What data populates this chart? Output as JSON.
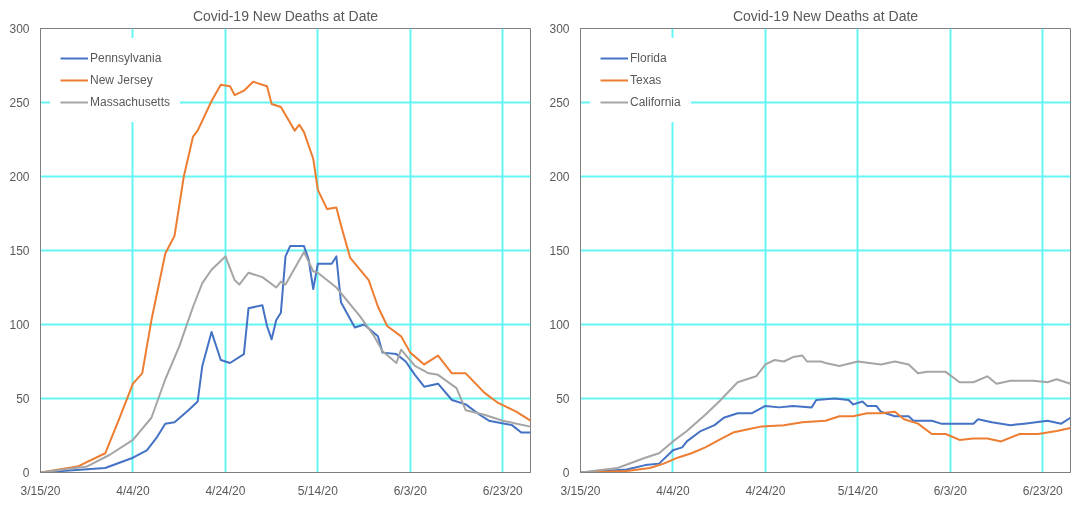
{
  "chart_data": [
    {
      "type": "line",
      "title": "Covid-19 New Deaths at Date",
      "xlim": [
        "2020-03-15",
        "2020-06-29"
      ],
      "xticks": [
        {
          "value": "2020-03-15",
          "label": "3/15/20"
        },
        {
          "value": "2020-04-04",
          "label": "4/4/20"
        },
        {
          "value": "2020-04-24",
          "label": "4/24/20"
        },
        {
          "value": "2020-05-14",
          "label": "5/14/20"
        },
        {
          "value": "2020-06-03",
          "label": "6/3/20"
        },
        {
          "value": "2020-06-23",
          "label": "6/23/20"
        }
      ],
      "ylim": [
        0,
        300
      ],
      "yticks": [
        0,
        50,
        100,
        150,
        200,
        250,
        300
      ],
      "grid": true,
      "legend": "top left",
      "series": [
        {
          "name": "Pennsylvania",
          "color": "#4472c4",
          "x": [
            "2020-03-15",
            "2020-03-29",
            "2020-04-04",
            "2020-04-07",
            "2020-04-09",
            "2020-04-11",
            "2020-04-13",
            "2020-04-16",
            "2020-04-18",
            "2020-04-19",
            "2020-04-21",
            "2020-04-23",
            "2020-04-25",
            "2020-04-28",
            "2020-04-29",
            "2020-05-02",
            "2020-05-03",
            "2020-05-04",
            "2020-05-05",
            "2020-05-06",
            "2020-05-07",
            "2020-05-08",
            "2020-05-11",
            "2020-05-12",
            "2020-05-13",
            "2020-05-14",
            "2020-05-17",
            "2020-05-18",
            "2020-05-19",
            "2020-05-22",
            "2020-05-24",
            "2020-05-27",
            "2020-05-28",
            "2020-05-31",
            "2020-06-02",
            "2020-06-04",
            "2020-06-06",
            "2020-06-09",
            "2020-06-12",
            "2020-06-15",
            "2020-06-18",
            "2020-06-20",
            "2020-06-25",
            "2020-06-27",
            "2020-06-29"
          ],
          "values": [
            0,
            3,
            10,
            15,
            23,
            33,
            34,
            42,
            48,
            72,
            95,
            76,
            74,
            80,
            111,
            113,
            99,
            90,
            103,
            108,
            146,
            153,
            153,
            144,
            124,
            141,
            141,
            146,
            115,
            98,
            100,
            92,
            81,
            80,
            75,
            66,
            58,
            60,
            49,
            46,
            39,
            35,
            32,
            27,
            27
          ]
        },
        {
          "name": "New Jersey",
          "color": "#ed7d31",
          "x": [
            "2020-03-15",
            "2020-03-23",
            "2020-03-29",
            "2020-04-01",
            "2020-04-04",
            "2020-04-06",
            "2020-04-08",
            "2020-04-11",
            "2020-04-13",
            "2020-04-15",
            "2020-04-17",
            "2020-04-18",
            "2020-04-21",
            "2020-04-23",
            "2020-04-25",
            "2020-04-26",
            "2020-04-28",
            "2020-04-30",
            "2020-05-03",
            "2020-05-04",
            "2020-05-06",
            "2020-05-09",
            "2020-05-10",
            "2020-05-11",
            "2020-05-13",
            "2020-05-14",
            "2020-05-16",
            "2020-05-18",
            "2020-05-19",
            "2020-05-21",
            "2020-05-25",
            "2020-05-27",
            "2020-05-29",
            "2020-06-01",
            "2020-06-03",
            "2020-06-06",
            "2020-06-09",
            "2020-06-12",
            "2020-06-15",
            "2020-06-19",
            "2020-06-22",
            "2020-06-26",
            "2020-06-29"
          ],
          "values": [
            0,
            4,
            13,
            36,
            60,
            67,
            103,
            148,
            160,
            200,
            227,
            231,
            251,
            262,
            261,
            255,
            258,
            264,
            261,
            249,
            247,
            231,
            235,
            230,
            212,
            191,
            178,
            179,
            167,
            145,
            130,
            112,
            99,
            92,
            81,
            73,
            79,
            67,
            67,
            54,
            47,
            41,
            35
          ]
        },
        {
          "name": "Massachusetts",
          "color": "#a5a5a5",
          "x": [
            "2020-03-15",
            "2020-03-25",
            "2020-03-30",
            "2020-04-04",
            "2020-04-08",
            "2020-04-11",
            "2020-04-14",
            "2020-04-17",
            "2020-04-19",
            "2020-04-21",
            "2020-04-24",
            "2020-04-26",
            "2020-04-27",
            "2020-04-29",
            "2020-05-02",
            "2020-05-05",
            "2020-05-06",
            "2020-05-07",
            "2020-05-11",
            "2020-05-13",
            "2020-05-14",
            "2020-05-18",
            "2020-05-23",
            "2020-05-26",
            "2020-05-28",
            "2020-05-31",
            "2020-06-01",
            "2020-06-04",
            "2020-06-07",
            "2020-06-09",
            "2020-06-13",
            "2020-06-15",
            "2020-06-19",
            "2020-06-23",
            "2020-06-26",
            "2020-06-29"
          ],
          "values": [
            0,
            4,
            12,
            22,
            37,
            63,
            85,
            112,
            128,
            137,
            146,
            130,
            127,
            135,
            132,
            125,
            129,
            127,
            149,
            136,
            135,
            125,
            106,
            93,
            82,
            74,
            83,
            72,
            67,
            66,
            57,
            42,
            39,
            35,
            33,
            31
          ]
        }
      ]
    },
    {
      "type": "line",
      "title": "Covid-19 New Deaths at Date",
      "xlim": [
        "2020-03-15",
        "2020-06-29"
      ],
      "xticks": [
        {
          "value": "2020-03-15",
          "label": "3/15/20"
        },
        {
          "value": "2020-04-04",
          "label": "4/4/20"
        },
        {
          "value": "2020-04-24",
          "label": "4/24/20"
        },
        {
          "value": "2020-05-14",
          "label": "5/14/20"
        },
        {
          "value": "2020-06-03",
          "label": "6/3/20"
        },
        {
          "value": "2020-06-23",
          "label": "6/23/20"
        }
      ],
      "ylim": [
        0,
        300
      ],
      "yticks": [
        0,
        50,
        100,
        150,
        200,
        250,
        300
      ],
      "grid": true,
      "legend": "top left",
      "series": [
        {
          "name": "Florida",
          "color": "#4472c4",
          "x": [
            "2020-03-15",
            "2020-03-25",
            "2020-03-29",
            "2020-04-01",
            "2020-04-04",
            "2020-04-06",
            "2020-04-07",
            "2020-04-10",
            "2020-04-13",
            "2020-04-15",
            "2020-04-18",
            "2020-04-21",
            "2020-04-24",
            "2020-04-27",
            "2020-04-30",
            "2020-05-04",
            "2020-05-05",
            "2020-05-09",
            "2020-05-12",
            "2020-05-13",
            "2020-05-15",
            "2020-05-16",
            "2020-05-18",
            "2020-05-19",
            "2020-05-22",
            "2020-05-25",
            "2020-05-26",
            "2020-05-30",
            "2020-06-01",
            "2020-06-08",
            "2020-06-09",
            "2020-06-12",
            "2020-06-16",
            "2020-06-19",
            "2020-06-24",
            "2020-06-27",
            "2020-06-29"
          ],
          "values": [
            0,
            2,
            5,
            6,
            15,
            17,
            21,
            28,
            32,
            37,
            40,
            40,
            45,
            44,
            45,
            44,
            49,
            50,
            49,
            46,
            48,
            45,
            45,
            41,
            38,
            38,
            35,
            35,
            33,
            33,
            36,
            34,
            32,
            33,
            35,
            33,
            37
          ]
        },
        {
          "name": "Texas",
          "color": "#ed7d31",
          "x": [
            "2020-03-15",
            "2020-03-25",
            "2020-03-30",
            "2020-04-02",
            "2020-04-05",
            "2020-04-08",
            "2020-04-11",
            "2020-04-14",
            "2020-04-17",
            "2020-04-20",
            "2020-04-23",
            "2020-04-28",
            "2020-05-02",
            "2020-05-07",
            "2020-05-10",
            "2020-05-13",
            "2020-05-16",
            "2020-05-19",
            "2020-05-22",
            "2020-05-24",
            "2020-05-27",
            "2020-05-30",
            "2020-06-02",
            "2020-06-05",
            "2020-06-08",
            "2020-06-11",
            "2020-06-14",
            "2020-06-18",
            "2020-06-22",
            "2020-06-26",
            "2020-06-29"
          ],
          "values": [
            0,
            1,
            3,
            6,
            10,
            13,
            17,
            22,
            27,
            29,
            31,
            32,
            34,
            35,
            38,
            38,
            40,
            40,
            41,
            36,
            33,
            26,
            26,
            22,
            23,
            23,
            21,
            26,
            26,
            28,
            30
          ]
        },
        {
          "name": "California",
          "color": "#a5a5a5",
          "x": [
            "2020-03-15",
            "2020-03-23",
            "2020-03-29",
            "2020-04-01",
            "2020-04-04",
            "2020-04-07",
            "2020-04-11",
            "2020-04-14",
            "2020-04-18",
            "2020-04-22",
            "2020-04-24",
            "2020-04-26",
            "2020-04-28",
            "2020-04-30",
            "2020-05-02",
            "2020-05-03",
            "2020-05-06",
            "2020-05-07",
            "2020-05-10",
            "2020-05-14",
            "2020-05-19",
            "2020-05-22",
            "2020-05-25",
            "2020-05-27",
            "2020-05-29",
            "2020-06-02",
            "2020-06-05",
            "2020-06-08",
            "2020-06-11",
            "2020-06-13",
            "2020-06-16",
            "2020-06-21",
            "2020-06-24",
            "2020-06-26",
            "2020-06-29"
          ],
          "values": [
            0,
            3,
            10,
            13,
            21,
            28,
            39,
            48,
            61,
            65,
            73,
            76,
            75,
            78,
            79,
            75,
            75,
            74,
            72,
            75,
            73,
            75,
            73,
            67,
            68,
            68,
            61,
            61,
            65,
            60,
            62,
            62,
            61,
            63,
            60
          ]
        }
      ]
    }
  ]
}
